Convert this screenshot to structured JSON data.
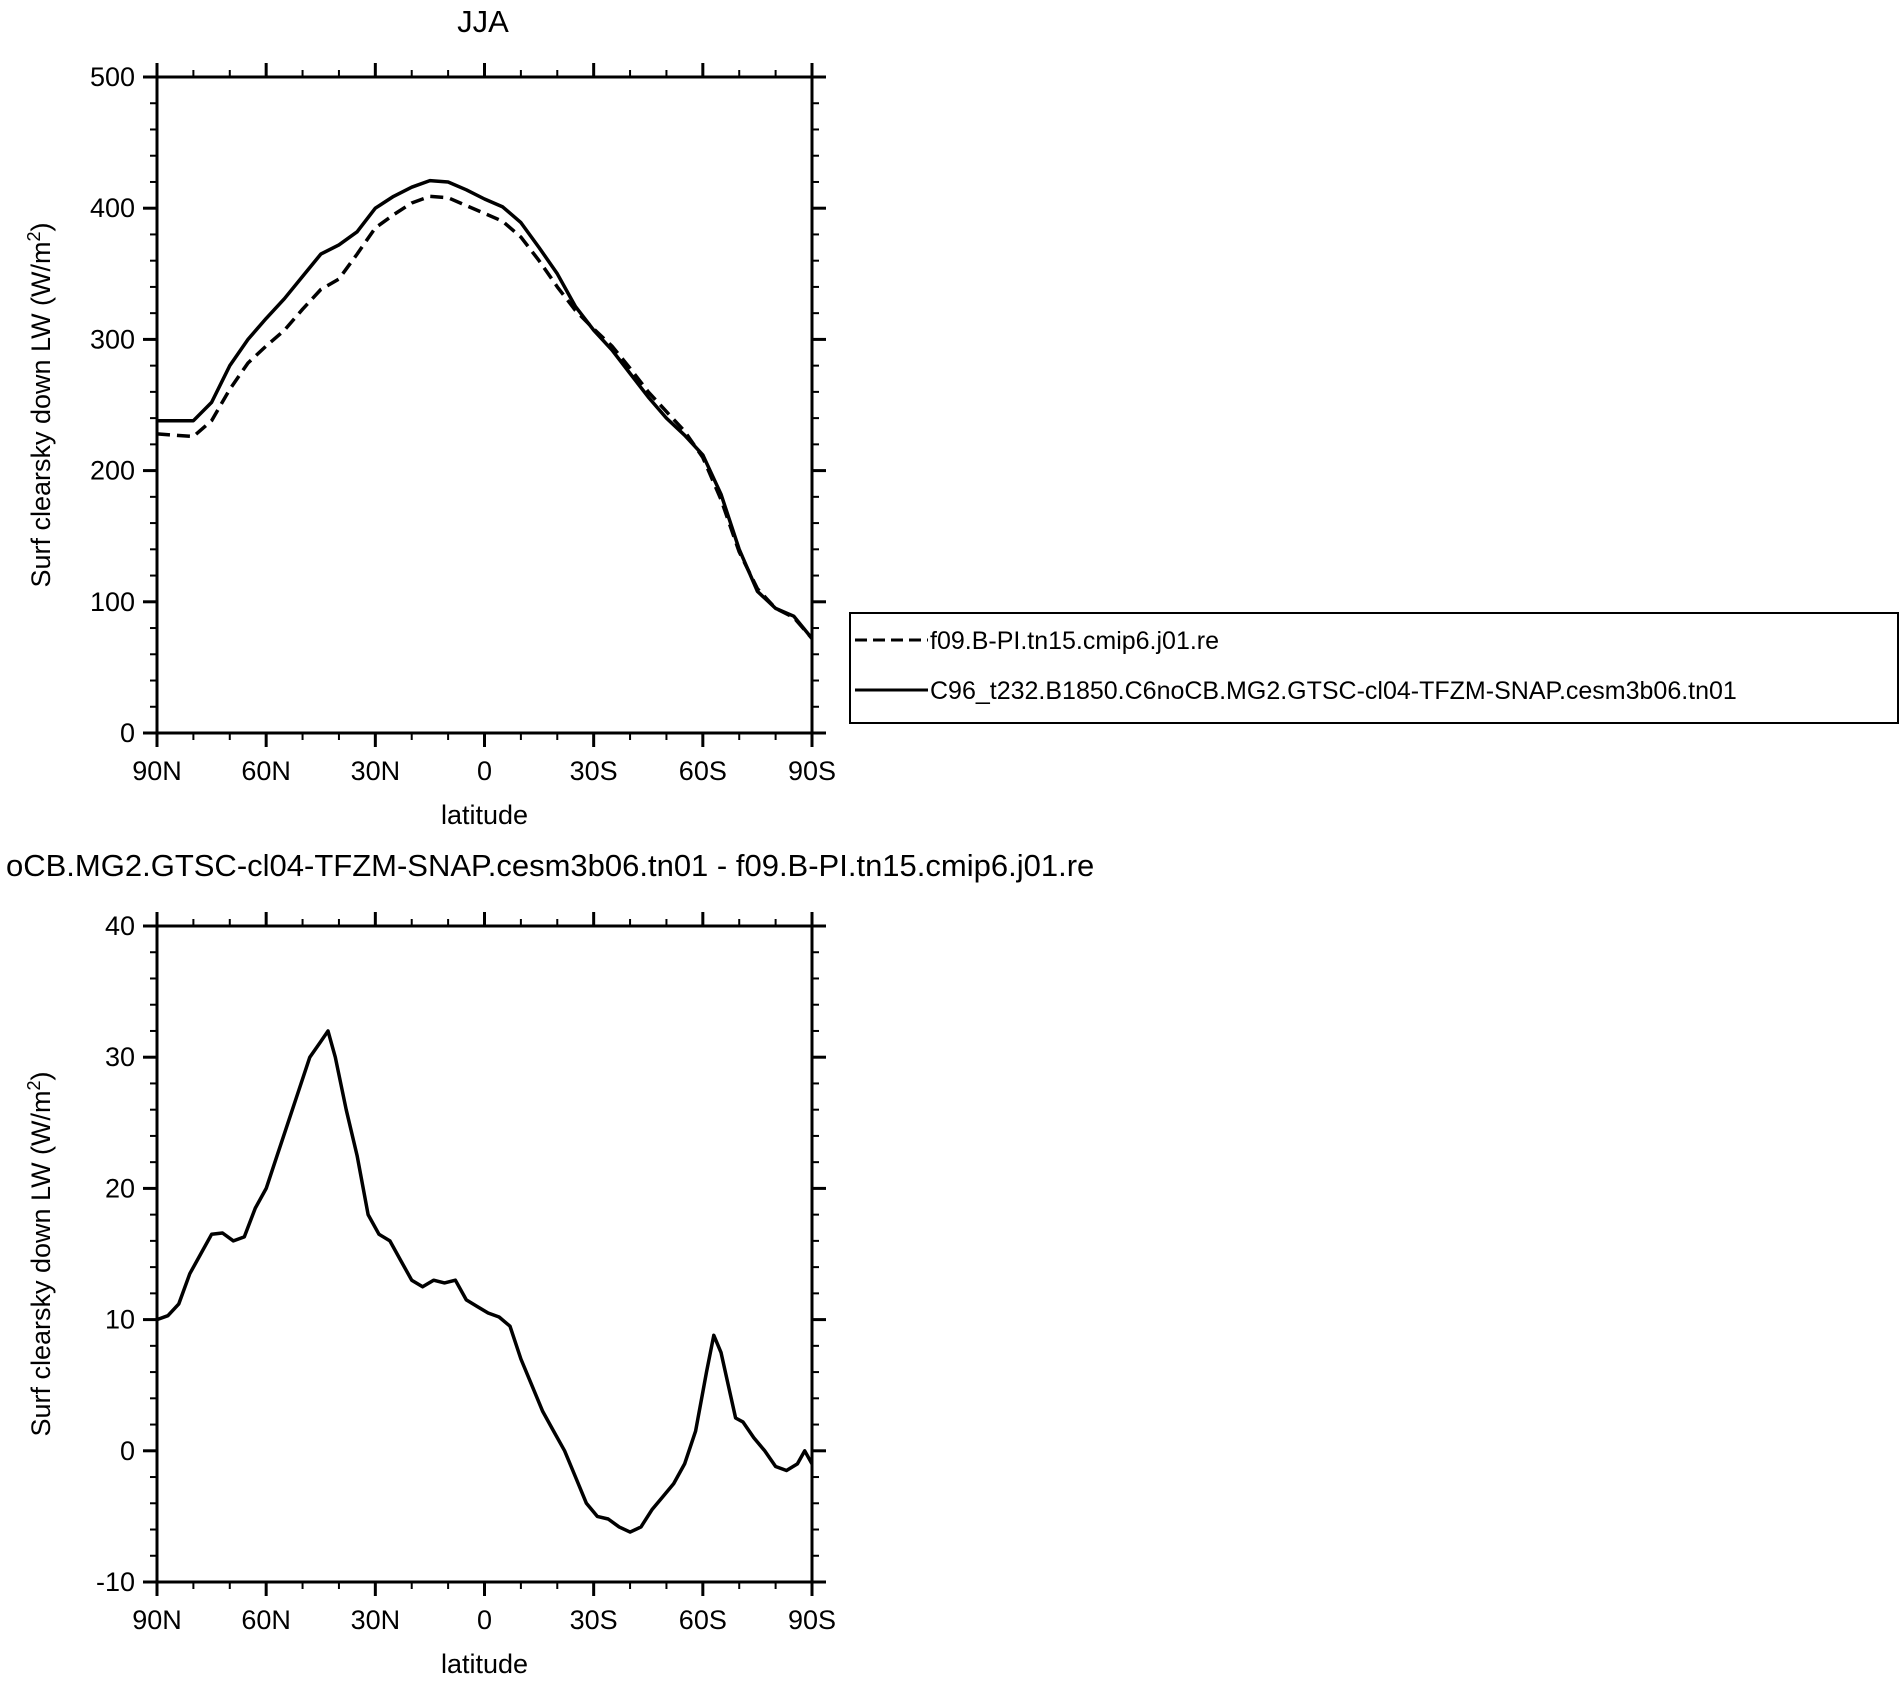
{
  "figure": {
    "top_title": "JJA",
    "bottom_title": "oCB.MG2.GTSC-cl04-TFZM-SNAP.cesm3b06.tn01 - f09.B-PI.tn15.cmip6.j01.re"
  },
  "legend": {
    "items": [
      {
        "label": "f09.B-PI.tn15.cmip6.j01.re",
        "style": "dashed"
      },
      {
        "label": "C96_t232.B1850.C6noCB.MG2.GTSC-cl04-TFZM-SNAP.cesm3b06.tn01",
        "style": "solid"
      }
    ]
  },
  "chart_data": [
    {
      "type": "line",
      "title": "JJA",
      "xlabel": "latitude",
      "ylabel": "Surf clearsky down LW (W/m",
      "ylabel_sup": "2",
      "ylabel_close": ")",
      "xlim": [
        90,
        -90
      ],
      "ylim": [
        0,
        500
      ],
      "xtick_values": [
        90,
        60,
        30,
        0,
        -30,
        -60,
        -90
      ],
      "xtick_labels": [
        "90N",
        "60N",
        "30N",
        "0",
        "30S",
        "60S",
        "90S"
      ],
      "ytick_values": [
        0,
        100,
        200,
        300,
        400,
        500
      ],
      "ytick_labels": [
        "0",
        "100",
        "200",
        "300",
        "400",
        "500"
      ],
      "x": [
        90,
        85,
        80,
        75,
        70,
        65,
        60,
        55,
        50,
        45,
        40,
        35,
        30,
        25,
        20,
        15,
        10,
        5,
        0,
        -5,
        -10,
        -15,
        -20,
        -25,
        -30,
        -35,
        -40,
        -45,
        -50,
        -55,
        -60,
        -65,
        -70,
        -75,
        -80,
        -85,
        -90
      ],
      "series": [
        {
          "name": "f09.B-PI.tn15.cmip6.j01.re",
          "style": "dashed",
          "values": [
            228,
            227,
            226,
            238,
            262,
            282,
            295,
            307,
            323,
            338,
            346,
            365,
            385,
            395,
            404,
            409,
            408,
            402,
            396,
            390,
            378,
            360,
            340,
            322,
            308,
            295,
            278,
            260,
            245,
            230,
            210,
            178,
            138,
            110,
            95,
            88,
            72
          ]
        },
        {
          "name": "C96_t232.B1850.C6noCB.MG2.GTSC-cl04-TFZM-SNAP.cesm3b06.tn01",
          "style": "solid",
          "values": [
            238,
            238,
            238,
            252,
            280,
            300,
            316,
            331,
            348,
            365,
            372,
            382,
            400,
            409,
            416,
            421,
            420,
            414,
            407,
            401,
            389,
            370,
            350,
            325,
            307,
            292,
            274,
            256,
            240,
            227,
            212,
            182,
            140,
            108,
            95,
            89,
            72
          ]
        }
      ]
    },
    {
      "type": "line",
      "title": "oCB.MG2.GTSC-cl04-TFZM-SNAP.cesm3b06.tn01 - f09.B-PI.tn15.cmip6.j01.re",
      "xlabel": "latitude",
      "ylabel": "Surf clearsky down LW (W/m",
      "ylabel_sup": "2",
      "ylabel_close": ")",
      "xlim": [
        90,
        -90
      ],
      "ylim": [
        -10,
        40
      ],
      "xtick_values": [
        90,
        60,
        30,
        0,
        -30,
        -60,
        -90
      ],
      "xtick_labels": [
        "90N",
        "60N",
        "30N",
        "0",
        "30S",
        "60S",
        "90S"
      ],
      "ytick_values": [
        -10,
        0,
        10,
        20,
        30,
        40
      ],
      "ytick_labels": [
        "-10",
        "0",
        "10",
        "20",
        "30",
        "40"
      ],
      "x": [
        90,
        87,
        84,
        81,
        78,
        75,
        72,
        69,
        66,
        63,
        60,
        57,
        54,
        51,
        48,
        45,
        43,
        41,
        38,
        35,
        32,
        29,
        26,
        23,
        20,
        17,
        14,
        11,
        8,
        5,
        2,
        -1,
        -4,
        -7,
        -10,
        -13,
        -16,
        -19,
        -22,
        -25,
        -28,
        -31,
        -34,
        -37,
        -40,
        -43,
        -46,
        -49,
        -52,
        -55,
        -58,
        -61,
        -63,
        -65,
        -67,
        -69,
        -71,
        -74,
        -77,
        -80,
        -83,
        -86,
        -88,
        -90
      ],
      "series": [
        {
          "name": "",
          "style": "solid",
          "values": [
            10.0,
            10.3,
            11.2,
            13.5,
            15.0,
            16.5,
            16.6,
            16.0,
            16.3,
            18.5,
            20.0,
            22.5,
            25.0,
            27.5,
            30.0,
            31.2,
            32.0,
            30.0,
            26.0,
            22.5,
            18.0,
            16.5,
            16.0,
            14.5,
            13.0,
            12.5,
            13.0,
            12.8,
            13.0,
            11.5,
            11.0,
            10.5,
            10.2,
            9.5,
            7.0,
            5.0,
            3.0,
            1.5,
            0.0,
            -2.0,
            -4.0,
            -5.0,
            -5.2,
            -5.8,
            -6.2,
            -5.8,
            -4.5,
            -3.5,
            -2.5,
            -1.0,
            1.5,
            6.0,
            8.8,
            7.5,
            5.0,
            2.5,
            2.2,
            1.0,
            0.0,
            -1.2,
            -1.5,
            -1.0,
            0.0,
            -1.0
          ]
        }
      ]
    }
  ]
}
